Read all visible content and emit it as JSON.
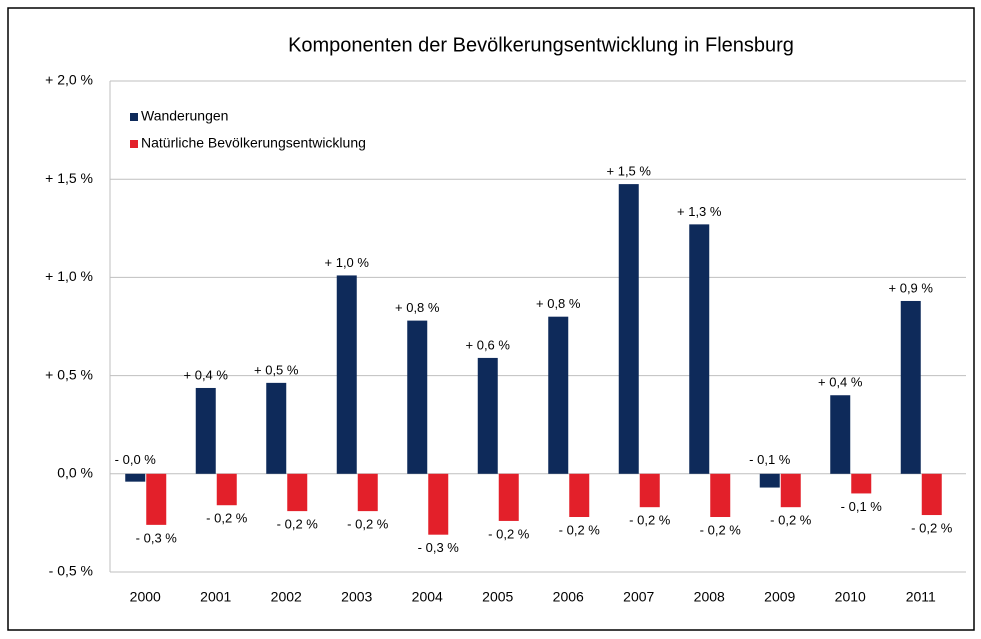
{
  "chart_data": {
    "type": "bar",
    "title": "Komponenten der Bevölkerungsentwicklung in Flensburg",
    "categories": [
      "2000",
      "2001",
      "2002",
      "2003",
      "2004",
      "2005",
      "2006",
      "2007",
      "2008",
      "2009",
      "2010",
      "2011"
    ],
    "series": [
      {
        "name": "Wanderungen",
        "color": "#0e2a5a",
        "values": [
          -0.04,
          0.437,
          0.463,
          1.01,
          0.78,
          0.59,
          0.8,
          1.475,
          1.27,
          -0.07,
          0.4,
          0.88
        ],
        "value_labels": [
          "- 0,0 %",
          "+ 0,4 %",
          "+ 0,5 %",
          "+ 1,0 %",
          "+ 0,8 %",
          "+ 0,6 %",
          "+ 0,8 %",
          "+ 1,5 %",
          "+ 1,3 %",
          "- 0,1 %",
          "+ 0,4 %",
          "+ 0,9 %"
        ]
      },
      {
        "name": "Natürliche Bevölkerungsentwicklung",
        "color": "#e3202a",
        "values": [
          -0.26,
          -0.16,
          -0.19,
          -0.19,
          -0.31,
          -0.24,
          -0.22,
          -0.17,
          -0.22,
          -0.17,
          -0.1,
          -0.21
        ],
        "value_labels": [
          "- 0,3 %",
          "- 0,2 %",
          "- 0,2 %",
          "- 0,2 %",
          "- 0,3 %",
          "- 0,2 %",
          "- 0,2 %",
          "- 0,2 %",
          "- 0,2 %",
          "- 0,2 %",
          "- 0,1 %",
          "- 0,2 %"
        ]
      }
    ],
    "ylim": [
      -0.5,
      2.0
    ],
    "yticks": [
      {
        "value": -0.5,
        "label": "- 0,5 %"
      },
      {
        "value": 0,
        "label": "0,0 %"
      },
      {
        "value": 0.5,
        "label": "+ 0,5 %"
      },
      {
        "value": 1.0,
        "label": "+ 1,0 %"
      },
      {
        "value": 1.5,
        "label": "+ 1,5 %"
      },
      {
        "value": 2.0,
        "label": "+ 2,0 %"
      }
    ],
    "grid": true,
    "legend": "top-left"
  }
}
